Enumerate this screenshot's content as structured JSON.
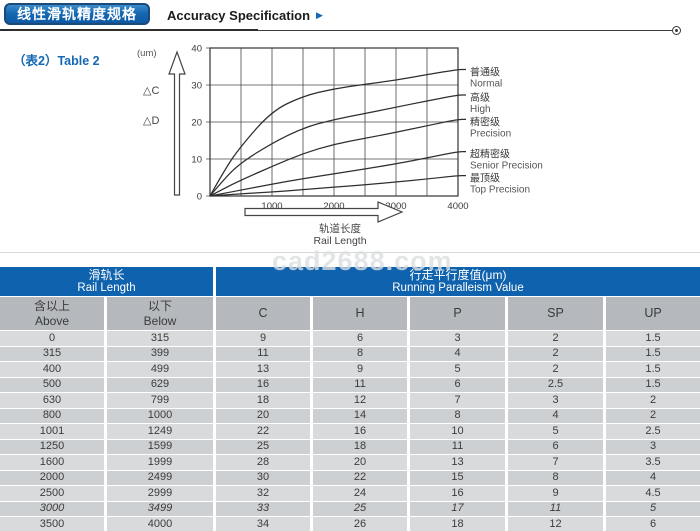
{
  "header": {
    "badge_zh": "线性滑轨精度规格",
    "title_en": "Accuracy Specification",
    "arrow_glyph": "▶"
  },
  "table2_caption": "（表2）Table 2",
  "watermark": "cad2688.com",
  "chart_data": {
    "type": "line",
    "unit_label": "(um)",
    "y_axis_annotations": [
      "△C",
      "△D"
    ],
    "xlabel_zh": "轨道长度",
    "xlabel_en": "Rail Length",
    "xlim": [
      0,
      4000
    ],
    "ylim": [
      0,
      40
    ],
    "x_gridline_step": 500,
    "y_gridline_step": 10,
    "x_ticks": [
      1000,
      2000,
      3000,
      4000
    ],
    "y_ticks": [
      0,
      10,
      20,
      30,
      40
    ],
    "grid": true,
    "legend_position": "right",
    "x": [
      0,
      250,
      500,
      1000,
      1500,
      2000,
      2500,
      3000,
      3500,
      4000
    ],
    "series": [
      {
        "name_zh": "普通级",
        "name_en": "Normal",
        "values": [
          0,
          7.5,
          13.5,
          23,
          27,
          29,
          30.2,
          31.3,
          32.8,
          34.2
        ]
      },
      {
        "name_zh": "高级",
        "name_en": "High",
        "values": [
          0,
          5,
          9,
          14.3,
          18.4,
          20.7,
          22.3,
          24,
          25.7,
          27.3
        ]
      },
      {
        "name_zh": "精密级",
        "name_en": "Precision",
        "values": [
          0,
          2.2,
          4.3,
          8,
          11.5,
          14,
          15.6,
          17.2,
          19,
          20.7
        ]
      },
      {
        "name_zh": "超精密级",
        "name_en": "Senior Precision",
        "values": [
          0,
          0.8,
          1.6,
          3.2,
          4.7,
          6,
          7.3,
          8.7,
          10.3,
          12
        ]
      },
      {
        "name_zh": "最顶级",
        "name_en": "Top Precision",
        "values": [
          0,
          0.3,
          0.6,
          1.1,
          1.7,
          2.4,
          3,
          3.8,
          4.6,
          5.5
        ]
      }
    ]
  },
  "table": {
    "group_headers": [
      {
        "zh": "滑轨长",
        "en": "Rail Length"
      },
      {
        "zh": "行走平行度值(μm)",
        "en": "Running Paralleism Value"
      }
    ],
    "sub_headers": [
      {
        "zh": "含以上",
        "en": "Above"
      },
      {
        "zh": "以下",
        "en": "Below"
      },
      {
        "label": "C"
      },
      {
        "label": "H"
      },
      {
        "label": "P"
      },
      {
        "label": "SP"
      },
      {
        "label": "UP"
      }
    ],
    "rows": [
      [
        "0",
        "315",
        "9",
        "6",
        "3",
        "2",
        "1.5"
      ],
      [
        "315",
        "399",
        "11",
        "8",
        "4",
        "2",
        "1.5"
      ],
      [
        "400",
        "499",
        "13",
        "9",
        "5",
        "2",
        "1.5"
      ],
      [
        "500",
        "629",
        "16",
        "11",
        "6",
        "2.5",
        "1.5"
      ],
      [
        "630",
        "799",
        "18",
        "12",
        "7",
        "3",
        "2"
      ],
      [
        "800",
        "1000",
        "20",
        "14",
        "8",
        "4",
        "2"
      ],
      [
        "1001",
        "1249",
        "22",
        "16",
        "10",
        "5",
        "2.5"
      ],
      [
        "1250",
        "1599",
        "25",
        "18",
        "11",
        "6",
        "3"
      ],
      [
        "1600",
        "1999",
        "28",
        "20",
        "13",
        "7",
        "3.5"
      ],
      [
        "2000",
        "2499",
        "30",
        "22",
        "15",
        "8",
        "4"
      ],
      [
        "2500",
        "2999",
        "32",
        "24",
        "16",
        "9",
        "4.5"
      ],
      [
        "3000",
        "3499",
        "33",
        "25",
        "17",
        "11",
        "5"
      ],
      [
        "3500",
        "4000",
        "34",
        "26",
        "18",
        "12",
        "6"
      ]
    ]
  }
}
